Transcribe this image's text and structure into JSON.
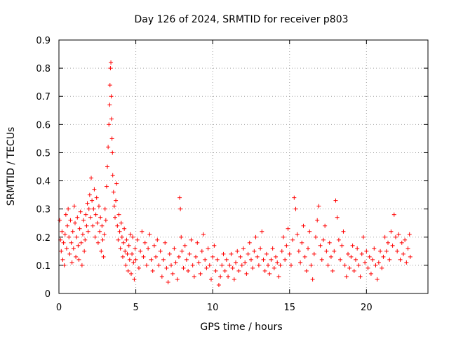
{
  "chart_data": {
    "type": "scatter",
    "title": "Day 126 of 2024, SRMTID for receiver p803",
    "xlabel": "GPS time / hours",
    "ylabel": "SRMTID / TECUs",
    "xlim": [
      0,
      24
    ],
    "ylim": [
      0,
      0.9
    ],
    "xticks": [
      0,
      5,
      10,
      15,
      20
    ],
    "xtick_labels": [
      "0",
      "5",
      "10",
      "15",
      "20"
    ],
    "yticks": [
      0,
      0.1,
      0.2,
      0.3,
      0.4,
      0.5,
      0.6,
      0.7,
      0.8,
      0.9
    ],
    "ytick_labels": [
      "0",
      "0.1",
      "0.2",
      "0.3",
      "0.4",
      "0.5",
      "0.6",
      "0.7",
      "0.8",
      "0.9"
    ],
    "grid": true,
    "marker": "+",
    "color": "#ff0000",
    "series": [
      {
        "name": "SRMTID",
        "points": [
          [
            0.05,
            0.26
          ],
          [
            0.1,
            0.19
          ],
          [
            0.15,
            0.15
          ],
          [
            0.2,
            0.22
          ],
          [
            0.25,
            0.12
          ],
          [
            0.3,
            0.18
          ],
          [
            0.35,
            0.1
          ],
          [
            0.4,
            0.21
          ],
          [
            0.45,
            0.28
          ],
          [
            0.5,
            0.16
          ],
          [
            0.55,
            0.24
          ],
          [
            0.6,
            0.3
          ],
          [
            0.65,
            0.2
          ],
          [
            0.7,
            0.14
          ],
          [
            0.75,
            0.26
          ],
          [
            0.8,
            0.18
          ],
          [
            0.85,
            0.11
          ],
          [
            0.9,
            0.22
          ],
          [
            0.95,
            0.16
          ],
          [
            1.0,
            0.31
          ],
          [
            1.05,
            0.25
          ],
          [
            1.1,
            0.13
          ],
          [
            1.15,
            0.2
          ],
          [
            1.2,
            0.27
          ],
          [
            1.25,
            0.17
          ],
          [
            1.3,
            0.12
          ],
          [
            1.35,
            0.23
          ],
          [
            1.4,
            0.29
          ],
          [
            1.45,
            0.18
          ],
          [
            1.5,
            0.1
          ],
          [
            1.55,
            0.21
          ],
          [
            1.6,
            0.26
          ],
          [
            1.65,
            0.15
          ],
          [
            1.7,
            0.19
          ],
          [
            1.75,
            0.28
          ],
          [
            1.8,
            0.24
          ],
          [
            1.85,
            0.32
          ],
          [
            1.9,
            0.22
          ],
          [
            1.95,
            0.3
          ],
          [
            2.0,
            0.35
          ],
          [
            2.05,
            0.27
          ],
          [
            2.1,
            0.41
          ],
          [
            2.15,
            0.33
          ],
          [
            2.2,
            0.24
          ],
          [
            2.25,
            0.3
          ],
          [
            2.3,
            0.37
          ],
          [
            2.35,
            0.2
          ],
          [
            2.4,
            0.28
          ],
          [
            2.45,
            0.34
          ],
          [
            2.5,
            0.25
          ],
          [
            2.55,
            0.18
          ],
          [
            2.6,
            0.31
          ],
          [
            2.65,
            0.22
          ],
          [
            2.7,
            0.27
          ],
          [
            2.75,
            0.15
          ],
          [
            2.8,
            0.24
          ],
          [
            2.85,
            0.19
          ],
          [
            2.9,
            0.13
          ],
          [
            2.95,
            0.21
          ],
          [
            3.0,
            0.3
          ],
          [
            3.05,
            0.26
          ],
          [
            3.1,
            0.38
          ],
          [
            3.15,
            0.45
          ],
          [
            3.2,
            0.52
          ],
          [
            3.25,
            0.6
          ],
          [
            3.3,
            0.67
          ],
          [
            3.32,
            0.74
          ],
          [
            3.35,
            0.8
          ],
          [
            3.38,
            0.82
          ],
          [
            3.4,
            0.7
          ],
          [
            3.42,
            0.62
          ],
          [
            3.45,
            0.55
          ],
          [
            3.48,
            0.5
          ],
          [
            3.5,
            0.42
          ],
          [
            3.55,
            0.36
          ],
          [
            3.6,
            0.31
          ],
          [
            3.65,
            0.27
          ],
          [
            3.7,
            0.33
          ],
          [
            3.75,
            0.39
          ],
          [
            3.8,
            0.24
          ],
          [
            3.85,
            0.19
          ],
          [
            3.9,
            0.28
          ],
          [
            3.95,
            0.22
          ],
          [
            4.0,
            0.16
          ],
          [
            4.05,
            0.25
          ],
          [
            4.1,
            0.2
          ],
          [
            4.15,
            0.13
          ],
          [
            4.2,
            0.18
          ],
          [
            4.25,
            0.23
          ],
          [
            4.3,
            0.15
          ],
          [
            4.35,
            0.1
          ],
          [
            4.4,
            0.19
          ],
          [
            4.45,
            0.14
          ],
          [
            4.5,
            0.08
          ],
          [
            4.55,
            0.17
          ],
          [
            4.6,
            0.12
          ],
          [
            4.65,
            0.21
          ],
          [
            4.7,
            0.07
          ],
          [
            4.75,
            0.14
          ],
          [
            4.8,
            0.2
          ],
          [
            4.85,
            0.11
          ],
          [
            4.9,
            0.05
          ],
          [
            4.95,
            0.16
          ],
          [
            5.0,
            0.12
          ],
          [
            5.1,
            0.19
          ],
          [
            5.2,
            0.09
          ],
          [
            5.3,
            0.15
          ],
          [
            5.4,
            0.22
          ],
          [
            5.5,
            0.13
          ],
          [
            5.6,
            0.18
          ],
          [
            5.7,
            0.1
          ],
          [
            5.8,
            0.16
          ],
          [
            5.9,
            0.21
          ],
          [
            6.0,
            0.12
          ],
          [
            6.1,
            0.08
          ],
          [
            6.2,
            0.17
          ],
          [
            6.3,
            0.13
          ],
          [
            6.4,
            0.19
          ],
          [
            6.5,
            0.1
          ],
          [
            6.6,
            0.15
          ],
          [
            6.7,
            0.06
          ],
          [
            6.8,
            0.12
          ],
          [
            6.9,
            0.18
          ],
          [
            7.0,
            0.09
          ],
          [
            7.1,
            0.04
          ],
          [
            7.2,
            0.14
          ],
          [
            7.3,
            0.1
          ],
          [
            7.4,
            0.07
          ],
          [
            7.5,
            0.16
          ],
          [
            7.6,
            0.11
          ],
          [
            7.7,
            0.05
          ],
          [
            7.8,
            0.13
          ],
          [
            7.85,
            0.34
          ],
          [
            7.9,
            0.3
          ],
          [
            7.95,
            0.2
          ],
          [
            8.0,
            0.15
          ],
          [
            8.1,
            0.09
          ],
          [
            8.2,
            0.17
          ],
          [
            8.3,
            0.12
          ],
          [
            8.4,
            0.08
          ],
          [
            8.5,
            0.14
          ],
          [
            8.6,
            0.19
          ],
          [
            8.7,
            0.1
          ],
          [
            8.8,
            0.06
          ],
          [
            8.9,
            0.13
          ],
          [
            9.0,
            0.18
          ],
          [
            9.1,
            0.11
          ],
          [
            9.2,
            0.07
          ],
          [
            9.3,
            0.15
          ],
          [
            9.4,
            0.21
          ],
          [
            9.5,
            0.12
          ],
          [
            9.6,
            0.09
          ],
          [
            9.7,
            0.16
          ],
          [
            9.8,
            0.1
          ],
          [
            9.9,
            0.05
          ],
          [
            10.0,
            0.13
          ],
          [
            10.1,
            0.17
          ],
          [
            10.2,
            0.08
          ],
          [
            10.3,
            0.12
          ],
          [
            10.4,
            0.03
          ],
          [
            10.5,
            0.06
          ],
          [
            10.6,
            0.1
          ],
          [
            10.7,
            0.14
          ],
          [
            10.8,
            0.08
          ],
          [
            10.9,
            0.12
          ],
          [
            11.0,
            0.06
          ],
          [
            11.1,
            0.1
          ],
          [
            11.2,
            0.14
          ],
          [
            11.3,
            0.09
          ],
          [
            11.4,
            0.05
          ],
          [
            11.5,
            0.11
          ],
          [
            11.6,
            0.15
          ],
          [
            11.7,
            0.08
          ],
          [
            11.8,
            0.13
          ],
          [
            11.9,
            0.1
          ],
          [
            12.0,
            0.16
          ],
          [
            12.1,
            0.11
          ],
          [
            12.2,
            0.07
          ],
          [
            12.3,
            0.14
          ],
          [
            12.4,
            0.18
          ],
          [
            12.5,
            0.12
          ],
          [
            12.6,
            0.09
          ],
          [
            12.7,
            0.15
          ],
          [
            12.8,
            0.2
          ],
          [
            12.9,
            0.13
          ],
          [
            13.0,
            0.1
          ],
          [
            13.1,
            0.16
          ],
          [
            13.2,
            0.22
          ],
          [
            13.3,
            0.12
          ],
          [
            13.4,
            0.08
          ],
          [
            13.5,
            0.14
          ],
          [
            13.6,
            0.1
          ],
          [
            13.7,
            0.07
          ],
          [
            13.8,
            0.12
          ],
          [
            13.9,
            0.16
          ],
          [
            14.0,
            0.09
          ],
          [
            14.1,
            0.13
          ],
          [
            14.2,
            0.11
          ],
          [
            14.3,
            0.06
          ],
          [
            14.4,
            0.1
          ],
          [
            14.5,
            0.15
          ],
          [
            14.6,
            0.2
          ],
          [
            14.7,
            0.12
          ],
          [
            14.8,
            0.17
          ],
          [
            14.9,
            0.23
          ],
          [
            15.0,
            0.14
          ],
          [
            15.1,
            0.1
          ],
          [
            15.2,
            0.19
          ],
          [
            15.3,
            0.34
          ],
          [
            15.4,
            0.3
          ],
          [
            15.5,
            0.21
          ],
          [
            15.6,
            0.15
          ],
          [
            15.7,
            0.11
          ],
          [
            15.8,
            0.18
          ],
          [
            15.9,
            0.24
          ],
          [
            16.0,
            0.13
          ],
          [
            16.1,
            0.08
          ],
          [
            16.2,
            0.16
          ],
          [
            16.3,
            0.22
          ],
          [
            16.4,
            0.1
          ],
          [
            16.5,
            0.05
          ],
          [
            16.6,
            0.14
          ],
          [
            16.7,
            0.2
          ],
          [
            16.8,
            0.26
          ],
          [
            16.9,
            0.31
          ],
          [
            17.0,
            0.17
          ],
          [
            17.1,
            0.12
          ],
          [
            17.2,
            0.19
          ],
          [
            17.3,
            0.24
          ],
          [
            17.4,
            0.15
          ],
          [
            17.5,
            0.1
          ],
          [
            17.6,
            0.18
          ],
          [
            17.7,
            0.13
          ],
          [
            17.8,
            0.08
          ],
          [
            17.9,
            0.15
          ],
          [
            18.0,
            0.33
          ],
          [
            18.1,
            0.27
          ],
          [
            18.2,
            0.19
          ],
          [
            18.3,
            0.12
          ],
          [
            18.4,
            0.17
          ],
          [
            18.5,
            0.22
          ],
          [
            18.6,
            0.1
          ],
          [
            18.7,
            0.06
          ],
          [
            18.8,
            0.14
          ],
          [
            18.9,
            0.09
          ],
          [
            19.0,
            0.13
          ],
          [
            19.1,
            0.17
          ],
          [
            19.2,
            0.08
          ],
          [
            19.3,
            0.12
          ],
          [
            19.4,
            0.16
          ],
          [
            19.5,
            0.1
          ],
          [
            19.6,
            0.06
          ],
          [
            19.7,
            0.14
          ],
          [
            19.8,
            0.2
          ],
          [
            19.9,
            0.11
          ],
          [
            20.0,
            0.15
          ],
          [
            20.1,
            0.09
          ],
          [
            20.2,
            0.13
          ],
          [
            20.3,
            0.07
          ],
          [
            20.4,
            0.12
          ],
          [
            20.5,
            0.16
          ],
          [
            20.6,
            0.1
          ],
          [
            20.7,
            0.05
          ],
          [
            20.8,
            0.11
          ],
          [
            20.9,
            0.15
          ],
          [
            21.0,
            0.09
          ],
          [
            21.1,
            0.13
          ],
          [
            21.2,
            0.2
          ],
          [
            21.3,
            0.15
          ],
          [
            21.4,
            0.18
          ],
          [
            21.5,
            0.12
          ],
          [
            21.6,
            0.22
          ],
          [
            21.7,
            0.17
          ],
          [
            21.8,
            0.28
          ],
          [
            21.9,
            0.2
          ],
          [
            22.0,
            0.15
          ],
          [
            22.1,
            0.21
          ],
          [
            22.2,
            0.12
          ],
          [
            22.3,
            0.18
          ],
          [
            22.4,
            0.14
          ],
          [
            22.5,
            0.19
          ],
          [
            22.6,
            0.11
          ],
          [
            22.7,
            0.16
          ],
          [
            22.8,
            0.21
          ],
          [
            22.85,
            0.13
          ]
        ]
      }
    ]
  }
}
